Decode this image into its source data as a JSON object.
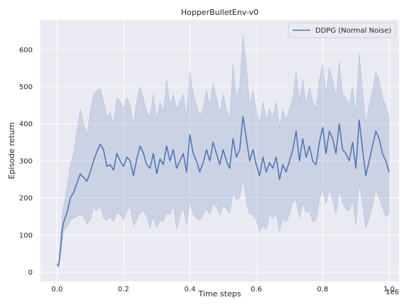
{
  "chart_data": {
    "type": "line",
    "title": "HopperBulletEnv-v0",
    "xlabel": "Time steps",
    "ylabel": "Episode return",
    "x_offset_label": "1e6",
    "xlim": [
      -0.05,
      1.03
    ],
    "ylim": [
      -25,
      680
    ],
    "xticks": [
      0.0,
      0.2,
      0.4,
      0.6,
      0.8,
      1.0
    ],
    "xtick_labels": [
      "0.0",
      "0.2",
      "0.4",
      "0.6",
      "0.8",
      "1.0"
    ],
    "yticks": [
      0,
      100,
      200,
      300,
      400,
      500,
      600
    ],
    "ytick_labels": [
      "0",
      "100",
      "200",
      "300",
      "400",
      "500",
      "600"
    ],
    "grid": true,
    "legend_position": "top-right",
    "colors": {
      "line": "#4c72b0",
      "band": "#4c72b0",
      "background": "#eaeaf2",
      "grid": "#ffffff"
    },
    "series": [
      {
        "name": "DDPG (Normal Noise)",
        "x": [
          0.0,
          0.005,
          0.01,
          0.015,
          0.02,
          0.03,
          0.04,
          0.05,
          0.06,
          0.07,
          0.08,
          0.09,
          0.1,
          0.11,
          0.12,
          0.13,
          0.14,
          0.15,
          0.16,
          0.17,
          0.18,
          0.19,
          0.2,
          0.21,
          0.22,
          0.23,
          0.24,
          0.25,
          0.26,
          0.27,
          0.28,
          0.29,
          0.3,
          0.31,
          0.32,
          0.33,
          0.34,
          0.35,
          0.36,
          0.37,
          0.38,
          0.39,
          0.4,
          0.41,
          0.42,
          0.43,
          0.44,
          0.45,
          0.46,
          0.47,
          0.48,
          0.49,
          0.5,
          0.51,
          0.52,
          0.53,
          0.54,
          0.55,
          0.56,
          0.57,
          0.58,
          0.59,
          0.6,
          0.61,
          0.62,
          0.63,
          0.64,
          0.65,
          0.66,
          0.67,
          0.68,
          0.69,
          0.7,
          0.71,
          0.72,
          0.73,
          0.74,
          0.75,
          0.76,
          0.77,
          0.78,
          0.79,
          0.8,
          0.81,
          0.82,
          0.83,
          0.84,
          0.85,
          0.86,
          0.87,
          0.88,
          0.89,
          0.9,
          0.91,
          0.92,
          0.93,
          0.94,
          0.95,
          0.96,
          0.97,
          0.98,
          0.99,
          1.0
        ],
        "y": [
          20,
          18,
          60,
          110,
          135,
          160,
          200,
          215,
          240,
          265,
          255,
          245,
          270,
          300,
          325,
          345,
          330,
          285,
          290,
          275,
          320,
          300,
          285,
          310,
          300,
          260,
          305,
          340,
          320,
          290,
          280,
          320,
          265,
          305,
          290,
          340,
          300,
          330,
          280,
          300,
          320,
          270,
          370,
          320,
          300,
          270,
          295,
          330,
          300,
          350,
          320,
          290,
          330,
          300,
          280,
          360,
          310,
          330,
          420,
          360,
          300,
          330,
          290,
          260,
          310,
          270,
          295,
          280,
          310,
          250,
          290,
          270,
          300,
          330,
          380,
          300,
          360,
          310,
          340,
          300,
          290,
          350,
          390,
          320,
          380,
          360,
          320,
          400,
          330,
          320,
          300,
          350,
          280,
          410,
          330,
          260,
          300,
          340,
          380,
          360,
          320,
          300,
          270
        ],
        "lower": [
          15,
          14,
          40,
          80,
          110,
          120,
          140,
          145,
          150,
          155,
          150,
          130,
          140,
          175,
          165,
          180,
          145,
          140,
          150,
          135,
          160,
          155,
          140,
          165,
          175,
          125,
          140,
          160,
          165,
          150,
          120,
          150,
          120,
          140,
          135,
          160,
          155,
          180,
          115,
          150,
          175,
          125,
          190,
          155,
          145,
          140,
          155,
          170,
          155,
          185,
          175,
          155,
          180,
          170,
          160,
          210,
          195,
          200,
          250,
          190,
          155,
          155,
          140,
          110,
          125,
          115,
          155,
          145,
          160,
          110,
          145,
          135,
          155,
          190,
          195,
          145,
          185,
          160,
          165,
          135,
          140,
          195,
          220,
          185,
          225,
          195,
          155,
          220,
          185,
          170,
          165,
          195,
          125,
          240,
          180,
          120,
          145,
          180,
          220,
          200,
          175,
          150,
          155
        ],
        "upper": [
          25,
          24,
          85,
          150,
          180,
          230,
          290,
          320,
          380,
          440,
          400,
          370,
          430,
          480,
          490,
          495,
          460,
          420,
          430,
          400,
          470,
          460,
          440,
          470,
          450,
          400,
          460,
          500,
          470,
          430,
          420,
          480,
          410,
          460,
          430,
          520,
          450,
          480,
          440,
          460,
          480,
          420,
          540,
          480,
          450,
          420,
          440,
          490,
          450,
          510,
          470,
          430,
          480,
          440,
          410,
          560,
          470,
          500,
          640,
          560,
          450,
          490,
          440,
          400,
          460,
          410,
          440,
          420,
          460,
          390,
          440,
          410,
          440,
          470,
          540,
          460,
          520,
          450,
          500,
          460,
          440,
          520,
          560,
          480,
          550,
          520,
          470,
          570,
          480,
          470,
          450,
          500,
          430,
          590,
          490,
          400,
          450,
          490,
          540,
          520,
          470,
          450,
          420
        ]
      }
    ]
  }
}
